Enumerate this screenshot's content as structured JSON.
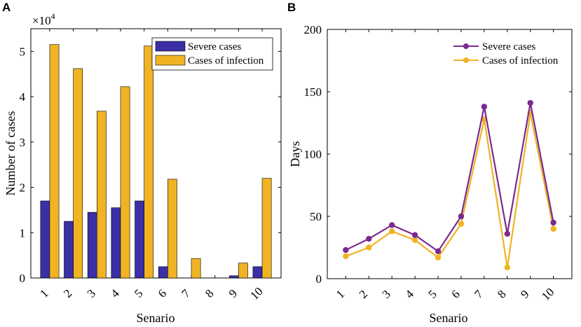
{
  "chart_data": [
    {
      "panel": "A",
      "type": "bar",
      "categories": [
        "1",
        "2",
        "3",
        "4",
        "5",
        "6",
        "7",
        "8",
        "9",
        "10"
      ],
      "series": [
        {
          "name": "Severe cases",
          "color": "#3b2fa6",
          "values": [
            1.7,
            1.25,
            1.45,
            1.55,
            1.7,
            0.25,
            0.0,
            0.0,
            0.05,
            0.25
          ]
        },
        {
          "name": "Cases of infection",
          "color": "#f0b323",
          "values": [
            5.15,
            4.62,
            3.68,
            4.22,
            5.12,
            2.18,
            0.43,
            0.0,
            0.33,
            2.2
          ]
        }
      ],
      "xlabel": "Senario",
      "ylabel": "Number of cases",
      "multiplier_label": "×10",
      "multiplier_exponent": "4",
      "ylim": [
        0,
        5.5
      ],
      "yticks": [
        "0",
        "1",
        "2",
        "3",
        "4",
        "5"
      ],
      "legend_position": "top-right"
    },
    {
      "panel": "B",
      "type": "line",
      "categories": [
        "1",
        "2",
        "3",
        "4",
        "5",
        "6",
        "7",
        "8",
        "9",
        "10"
      ],
      "series": [
        {
          "name": "Severe cases",
          "color": "#7b2a90",
          "values": [
            23,
            32,
            43,
            35,
            22,
            50,
            138,
            36,
            141,
            45
          ]
        },
        {
          "name": "Cases of infection",
          "color": "#f0b323",
          "values": [
            18,
            25,
            38,
            31,
            17,
            44,
            128,
            9,
            133,
            40
          ]
        }
      ],
      "xlabel": "Senario",
      "ylabel": "Days",
      "ylim": [
        0,
        200
      ],
      "yticks": [
        "0",
        "50",
        "100",
        "150",
        "200"
      ],
      "legend_position": "top-right"
    }
  ]
}
